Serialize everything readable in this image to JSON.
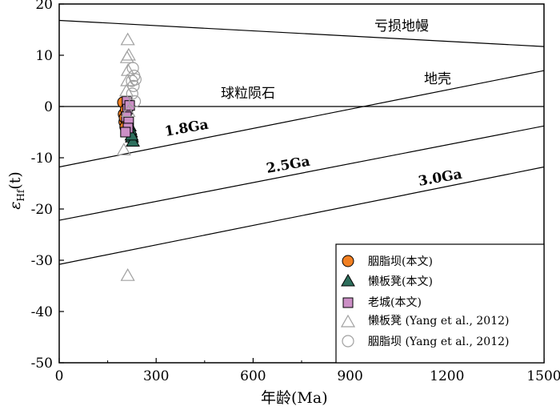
{
  "chart_data": {
    "type": "scatter",
    "xlim": [
      0,
      1500
    ],
    "ylim": [
      -50,
      20
    ],
    "x_ticks": [
      "0",
      "300",
      "600",
      "900",
      "1200",
      "1500"
    ],
    "y_ticks": [
      "20",
      "10",
      "0",
      "-10",
      "-20",
      "-30",
      "-40",
      "-50"
    ],
    "xlabel": "年龄(Ma)",
    "ylabel": {
      "main": "ε",
      "sub": "Hf",
      "suffix": "(t)"
    },
    "reference_lines": [
      {
        "label": "亏损地幔",
        "x": [
          0,
          1500
        ],
        "y": [
          16.8,
          11.7
        ]
      },
      {
        "label": "球粒陨石",
        "x": [
          0,
          1500
        ],
        "y": [
          0,
          0
        ]
      },
      {
        "label": "地壳",
        "x": [
          0,
          1500
        ],
        "y": [
          -11.8,
          7.0
        ]
      },
      {
        "label": "1.8Ga",
        "x": [
          0,
          1500
        ],
        "y": [
          -11.8,
          7.0
        ],
        "bold": true
      },
      {
        "label": "2.5Ga",
        "x": [
          0,
          1500
        ],
        "y": [
          -22.2,
          -3.8
        ],
        "bold": true
      },
      {
        "label": "3.0Ga",
        "x": [
          0,
          1500
        ],
        "y": [
          -30.8,
          -11.8
        ],
        "bold": true
      }
    ],
    "series": [
      {
        "name": "胭脂坝(本文)",
        "marker": "circle",
        "filled": true,
        "color": "#f07f22",
        "points": [
          [
            198,
            0.8
          ],
          [
            200,
            -1.5
          ],
          [
            202,
            -3.0
          ],
          [
            205,
            -4.0
          ],
          [
            203,
            -2.2
          ],
          [
            207,
            -0.6
          ]
        ]
      },
      {
        "name": "懒板凳(本文)",
        "marker": "triangle",
        "filled": true,
        "color": "#2e6f5d",
        "points": [
          [
            218,
            -3.8
          ],
          [
            222,
            -5.0
          ],
          [
            225,
            -6.0
          ],
          [
            228,
            -6.8
          ],
          [
            220,
            -4.5
          ],
          [
            224,
            -5.6
          ]
        ]
      },
      {
        "name": "老城(本文)",
        "marker": "square",
        "filled": true,
        "color": "#cc8fc6",
        "points": [
          [
            210,
            1.0
          ],
          [
            212,
            -0.5
          ],
          [
            208,
            -2.0
          ],
          [
            215,
            -3.0
          ],
          [
            213,
            -4.2
          ],
          [
            218,
            0.2
          ],
          [
            205,
            -5.0
          ]
        ]
      },
      {
        "name": "懒板凳 (Yang et al., 2012)",
        "marker": "triangle",
        "filled": false,
        "color": "#a0a0a0",
        "points": [
          [
            212,
            13.0
          ],
          [
            215,
            10.0
          ],
          [
            210,
            9.5
          ],
          [
            213,
            7.0
          ],
          [
            211,
            5.0
          ],
          [
            208,
            3.0
          ],
          [
            214,
            -1.0
          ],
          [
            200,
            -8.5
          ],
          [
            212,
            -33.0
          ]
        ]
      },
      {
        "name": "胭脂坝 (Yang et al., 2012)",
        "marker": "circle",
        "filled": false,
        "color": "#a0a0a0",
        "points": [
          [
            228,
            7.5
          ],
          [
            232,
            6.0
          ],
          [
            225,
            5.0
          ],
          [
            236,
            5.3
          ],
          [
            230,
            4.0
          ],
          [
            226,
            2.5
          ],
          [
            234,
            1.0
          ]
        ]
      }
    ],
    "legend_position": "bottom-right",
    "grid": false
  }
}
